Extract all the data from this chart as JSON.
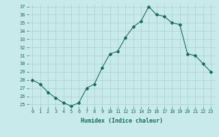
{
  "x": [
    0,
    1,
    2,
    3,
    4,
    5,
    6,
    7,
    8,
    9,
    10,
    11,
    12,
    13,
    14,
    15,
    16,
    17,
    18,
    19,
    20,
    21,
    22,
    23
  ],
  "y": [
    28,
    27.5,
    26.5,
    25.8,
    25.2,
    24.8,
    25.2,
    27.0,
    27.5,
    29.5,
    31.2,
    31.5,
    33.2,
    34.5,
    35.2,
    37.0,
    36.0,
    35.8,
    35.0,
    34.8,
    31.2,
    31.0,
    30.0,
    29.0
  ],
  "line_color": "#1a6b5a",
  "marker": "D",
  "marker_size": 2.0,
  "bg_color": "#c8eaea",
  "grid_color": "#a8d0d0",
  "xlabel": "Humidex (Indice chaleur)",
  "ylim": [
    25,
    37
  ],
  "xlim": [
    -0.5,
    23.5
  ],
  "yticks": [
    25,
    26,
    27,
    28,
    29,
    30,
    31,
    32,
    33,
    34,
    35,
    36,
    37
  ],
  "xticks": [
    0,
    1,
    2,
    3,
    4,
    5,
    6,
    7,
    8,
    9,
    10,
    11,
    12,
    13,
    14,
    15,
    16,
    17,
    18,
    19,
    20,
    21,
    22,
    23
  ],
  "font_color": "#1a6b5a",
  "tick_fontsize": 5.0,
  "xlabel_fontsize": 6.0
}
